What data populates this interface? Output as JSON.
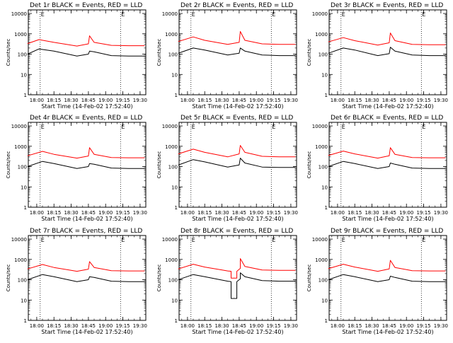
{
  "window": {
    "background": "#ffffff"
  },
  "common": {
    "x_tick_labels": [
      "18:00",
      "18:15",
      "18:30",
      "18:45",
      "19:00",
      "19:15",
      "19:30"
    ],
    "y_tick_labels": [
      "1",
      "10",
      "100",
      "1000",
      "10000"
    ],
    "ylabel": "Counts/sec",
    "xlabel": "Start Time (14-Feb-02 17:52:40)",
    "marker_labels": [
      "E",
      "E"
    ],
    "colors": {
      "events": "#000000",
      "lld": "#ff0000",
      "axes": "#000000"
    }
  },
  "chart_data": [
    {
      "type": "line",
      "title": "Det 1r BLACK = Events, RED = LLD",
      "xlabel": "Start Time (14-Feb-02 17:52:40)",
      "ylabel": "Counts/sec",
      "xlim": [
        "17:52:40",
        "19:35"
      ],
      "ylim": [
        1,
        15000
      ],
      "yscale": "log",
      "x_ticks": [
        "18:00",
        "18:15",
        "18:30",
        "18:45",
        "19:00",
        "19:15",
        "19:30"
      ],
      "vlines": [
        "18:03",
        "19:13"
      ],
      "series": [
        {
          "color": "#000000",
          "x": [
            "17:52",
            "18:02",
            "18:15",
            "18:35",
            "18:45",
            "18:46",
            "18:50",
            "19:05",
            "19:20",
            "19:34"
          ],
          "values": [
            100,
            180,
            140,
            80,
            100,
            140,
            130,
            85,
            80,
            80
          ]
        },
        {
          "color": "#ff0000",
          "x": [
            "17:52",
            "18:02",
            "18:15",
            "18:35",
            "18:45",
            "18:46",
            "18:50",
            "19:05",
            "19:20",
            "19:34"
          ],
          "values": [
            330,
            520,
            380,
            250,
            320,
            800,
            380,
            270,
            260,
            260
          ]
        }
      ]
    },
    {
      "type": "line",
      "title": "Det 2r BLACK = Events, RED = LLD",
      "xlabel": "Start Time (14-Feb-02 17:52:40)",
      "ylabel": "Counts/sec",
      "xlim": [
        "17:52:40",
        "19:35"
      ],
      "ylim": [
        1,
        15000
      ],
      "yscale": "log",
      "x_ticks": [
        "18:00",
        "18:15",
        "18:30",
        "18:45",
        "19:00",
        "19:15",
        "19:30"
      ],
      "vlines": [
        "18:03",
        "19:13"
      ],
      "series": [
        {
          "color": "#000000",
          "x": [
            "17:52",
            "18:05",
            "18:15",
            "18:35",
            "18:45",
            "18:46",
            "18:50",
            "19:05",
            "19:20",
            "19:34"
          ],
          "values": [
            110,
            200,
            160,
            90,
            110,
            200,
            140,
            90,
            85,
            85
          ]
        },
        {
          "color": "#ff0000",
          "x": [
            "17:52",
            "18:05",
            "18:15",
            "18:35",
            "18:45",
            "18:46",
            "18:50",
            "19:05",
            "19:20",
            "19:34"
          ],
          "values": [
            420,
            700,
            480,
            300,
            380,
            1300,
            480,
            320,
            300,
            300
          ]
        }
      ]
    },
    {
      "type": "line",
      "title": "Det 3r BLACK = Events, RED = LLD",
      "xlabel": "Start Time (14-Feb-02 17:52:40)",
      "ylabel": "Counts/sec",
      "xlim": [
        "17:52:40",
        "19:35"
      ],
      "ylim": [
        1,
        15000
      ],
      "yscale": "log",
      "x_ticks": [
        "18:00",
        "18:15",
        "18:30",
        "18:45",
        "19:00",
        "19:15",
        "19:30"
      ],
      "vlines": [
        "18:03",
        "19:13"
      ],
      "series": [
        {
          "color": "#000000",
          "x": [
            "17:52",
            "18:05",
            "18:15",
            "18:35",
            "18:45",
            "18:46",
            "18:50",
            "19:05",
            "19:20",
            "19:34"
          ],
          "values": [
            110,
            200,
            160,
            85,
            105,
            220,
            140,
            90,
            85,
            85
          ]
        },
        {
          "color": "#ff0000",
          "x": [
            "17:52",
            "18:05",
            "18:15",
            "18:35",
            "18:45",
            "18:46",
            "18:50",
            "19:05",
            "19:20",
            "19:34"
          ],
          "values": [
            400,
            650,
            460,
            280,
            360,
            1100,
            460,
            300,
            290,
            290
          ]
        }
      ]
    },
    {
      "type": "line",
      "title": "Det 4r BLACK = Events, RED = LLD",
      "xlabel": "Start Time (14-Feb-02 17:52:40)",
      "ylabel": "Counts/sec",
      "xlim": [
        "17:52:40",
        "19:35"
      ],
      "ylim": [
        1,
        15000
      ],
      "yscale": "log",
      "x_ticks": [
        "18:00",
        "18:15",
        "18:30",
        "18:45",
        "19:00",
        "19:15",
        "19:30"
      ],
      "vlines": [
        "18:03",
        "19:13"
      ],
      "series": [
        {
          "color": "#000000",
          "x": [
            "17:52",
            "18:05",
            "18:15",
            "18:35",
            "18:45",
            "18:46",
            "18:50",
            "19:05",
            "19:20",
            "19:34"
          ],
          "values": [
            100,
            180,
            140,
            80,
            100,
            140,
            130,
            85,
            80,
            80
          ]
        },
        {
          "color": "#ff0000",
          "x": [
            "17:52",
            "18:05",
            "18:15",
            "18:35",
            "18:45",
            "18:46",
            "18:50",
            "19:05",
            "19:20",
            "19:34"
          ],
          "values": [
            340,
            560,
            400,
            260,
            330,
            850,
            400,
            280,
            270,
            270
          ]
        }
      ]
    },
    {
      "type": "line",
      "title": "Det 5r BLACK = Events, RED = LLD",
      "xlabel": "Start Time (14-Feb-02 17:52:40)",
      "ylabel": "Counts/sec",
      "xlim": [
        "17:52:40",
        "19:35"
      ],
      "ylim": [
        1,
        15000
      ],
      "yscale": "log",
      "x_ticks": [
        "18:00",
        "18:15",
        "18:30",
        "18:45",
        "19:00",
        "19:15",
        "19:30"
      ],
      "vlines": [
        "18:03",
        "19:13"
      ],
      "series": [
        {
          "color": "#000000",
          "x": [
            "17:52",
            "18:05",
            "18:15",
            "18:35",
            "18:45",
            "18:46",
            "18:50",
            "19:05",
            "19:20",
            "19:34"
          ],
          "values": [
            120,
            220,
            170,
            95,
            120,
            260,
            150,
            95,
            90,
            90
          ]
        },
        {
          "color": "#ff0000",
          "x": [
            "17:52",
            "18:05",
            "18:15",
            "18:35",
            "18:45",
            "18:46",
            "18:50",
            "19:05",
            "19:20",
            "19:34"
          ],
          "values": [
            420,
            720,
            500,
            300,
            420,
            1100,
            500,
            320,
            300,
            300
          ]
        }
      ]
    },
    {
      "type": "line",
      "title": "Det 6r BLACK = Events, RED = LLD",
      "xlabel": "Start Time (14-Feb-02 17:52:40)",
      "ylabel": "Counts/sec",
      "xlim": [
        "17:52:40",
        "19:35"
      ],
      "ylim": [
        1,
        15000
      ],
      "yscale": "log",
      "x_ticks": [
        "18:00",
        "18:15",
        "18:30",
        "18:45",
        "19:00",
        "19:15",
        "19:30"
      ],
      "vlines": [
        "18:03",
        "19:13"
      ],
      "series": [
        {
          "color": "#000000",
          "x": [
            "17:52",
            "18:05",
            "18:15",
            "18:35",
            "18:45",
            "18:46",
            "18:50",
            "19:05",
            "19:20",
            "19:34"
          ],
          "values": [
            100,
            180,
            140,
            80,
            100,
            150,
            130,
            85,
            80,
            80
          ]
        },
        {
          "color": "#ff0000",
          "x": [
            "17:52",
            "18:05",
            "18:15",
            "18:35",
            "18:45",
            "18:46",
            "18:50",
            "19:05",
            "19:20",
            "19:34"
          ],
          "values": [
            350,
            580,
            420,
            260,
            340,
            850,
            400,
            280,
            270,
            270
          ]
        }
      ]
    },
    {
      "type": "line",
      "title": "Det 7r BLACK = Events, RED = LLD",
      "xlabel": "Start Time (14-Feb-02 17:52:40)",
      "ylabel": "Counts/sec",
      "xlim": [
        "17:52:40",
        "19:35"
      ],
      "ylim": [
        1,
        15000
      ],
      "yscale": "log",
      "x_ticks": [
        "18:00",
        "18:15",
        "18:30",
        "18:45",
        "19:00",
        "19:15",
        "19:30"
      ],
      "vlines": [
        "18:03",
        "19:13"
      ],
      "series": [
        {
          "color": "#000000",
          "x": [
            "17:52",
            "18:05",
            "18:15",
            "18:35",
            "18:45",
            "18:46",
            "18:50",
            "19:05",
            "19:20",
            "19:34"
          ],
          "values": [
            100,
            180,
            140,
            80,
            100,
            140,
            130,
            85,
            80,
            80
          ]
        },
        {
          "color": "#ff0000",
          "x": [
            "17:52",
            "18:05",
            "18:15",
            "18:35",
            "18:45",
            "18:46",
            "18:50",
            "19:05",
            "19:20",
            "19:34"
          ],
          "values": [
            340,
            560,
            400,
            260,
            330,
            780,
            400,
            280,
            270,
            270
          ]
        }
      ]
    },
    {
      "type": "line",
      "title": "Det 8r BLACK = Events, RED = LLD",
      "xlabel": "Start Time (14-Feb-02 17:52:40)",
      "ylabel": "Counts/sec",
      "xlim": [
        "17:52:40",
        "19:35"
      ],
      "ylim": [
        1,
        15000
      ],
      "yscale": "log",
      "x_ticks": [
        "18:00",
        "18:15",
        "18:30",
        "18:45",
        "19:00",
        "19:15",
        "19:30"
      ],
      "vlines": [
        "18:03",
        "19:13"
      ],
      "series": [
        {
          "color": "#000000",
          "x": [
            "17:52",
            "18:05",
            "18:15",
            "18:35",
            "18:38",
            "18:38",
            "18:43",
            "18:43",
            "18:46",
            "18:46",
            "18:50",
            "19:05",
            "19:20",
            "19:34"
          ],
          "values": [
            100,
            180,
            140,
            85,
            80,
            12,
            12,
            80,
            110,
            220,
            140,
            90,
            85,
            85
          ]
        },
        {
          "color": "#ff0000",
          "x": [
            "17:52",
            "18:05",
            "18:15",
            "18:35",
            "18:38",
            "18:38",
            "18:43",
            "18:43",
            "18:46",
            "18:46",
            "18:50",
            "19:05",
            "19:20",
            "19:34"
          ],
          "values": [
            340,
            580,
            420,
            270,
            260,
            120,
            120,
            260,
            360,
            1100,
            450,
            300,
            290,
            290
          ]
        }
      ]
    },
    {
      "type": "line",
      "title": "Det 9r BLACK = Events, RED = LLD",
      "xlabel": "Start Time (14-Feb-02 17:52:40)",
      "ylabel": "Counts/sec",
      "xlim": [
        "17:52:40",
        "19:35"
      ],
      "ylim": [
        1,
        15000
      ],
      "yscale": "log",
      "x_ticks": [
        "18:00",
        "18:15",
        "18:30",
        "18:45",
        "19:00",
        "19:15",
        "19:30"
      ],
      "vlines": [
        "18:03",
        "19:13"
      ],
      "series": [
        {
          "color": "#000000",
          "x": [
            "17:52",
            "18:05",
            "18:15",
            "18:35",
            "18:45",
            "18:46",
            "18:50",
            "19:05",
            "19:20",
            "19:34"
          ],
          "values": [
            100,
            180,
            140,
            80,
            100,
            150,
            130,
            85,
            80,
            80
          ]
        },
        {
          "color": "#ff0000",
          "x": [
            "17:52",
            "18:05",
            "18:15",
            "18:35",
            "18:45",
            "18:46",
            "18:50",
            "19:05",
            "19:20",
            "19:34"
          ],
          "values": [
            350,
            580,
            420,
            260,
            340,
            900,
            400,
            280,
            270,
            270
          ]
        }
      ]
    }
  ]
}
